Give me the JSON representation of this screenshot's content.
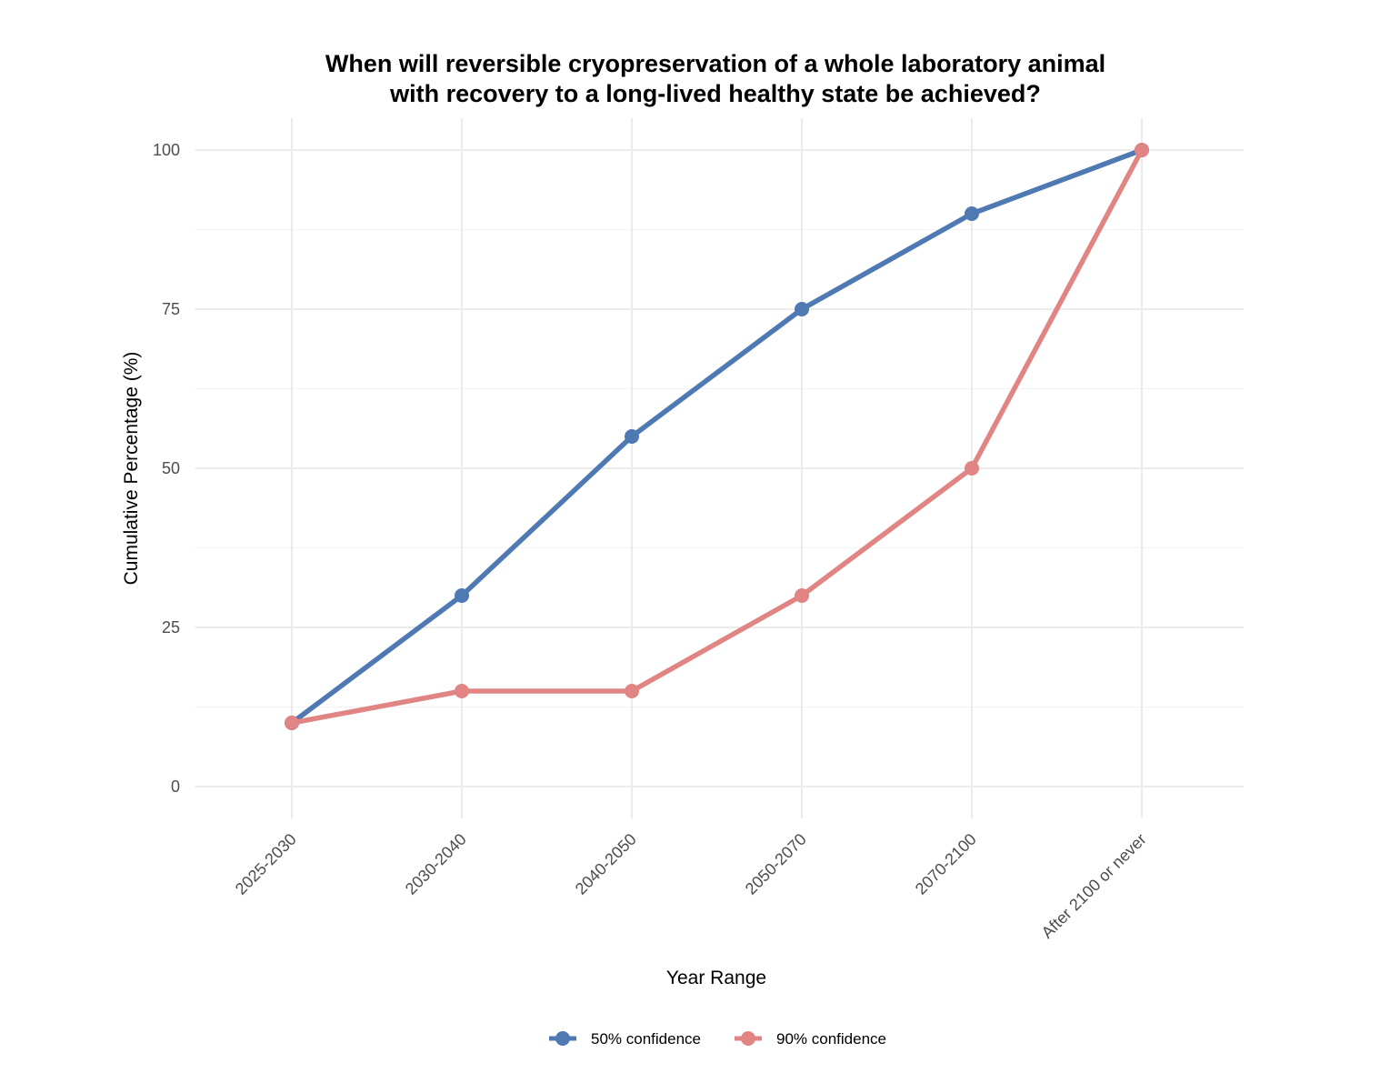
{
  "chart_data": {
    "type": "line",
    "title_lines": [
      "When will reversible cryopreservation of a whole laboratory animal",
      "with recovery to a long-lived healthy state be achieved?"
    ],
    "xlabel": "Year Range",
    "ylabel": "Cumulative Percentage (%)",
    "categories": [
      "2025-2030",
      "2030-2040",
      "2040-2050",
      "2050-2070",
      "2070-2100",
      "After 2100 or never"
    ],
    "yticks": [
      0,
      25,
      50,
      75,
      100
    ],
    "ylim": [
      -5,
      105
    ],
    "grid": true,
    "legend_position": "bottom",
    "series": [
      {
        "name": "50% confidence",
        "color": "#4e79b3",
        "values": [
          10,
          30,
          55,
          75,
          90,
          100
        ]
      },
      {
        "name": "90% confidence",
        "color": "#e08583",
        "values": [
          10,
          15,
          15,
          30,
          50,
          100
        ]
      }
    ]
  }
}
